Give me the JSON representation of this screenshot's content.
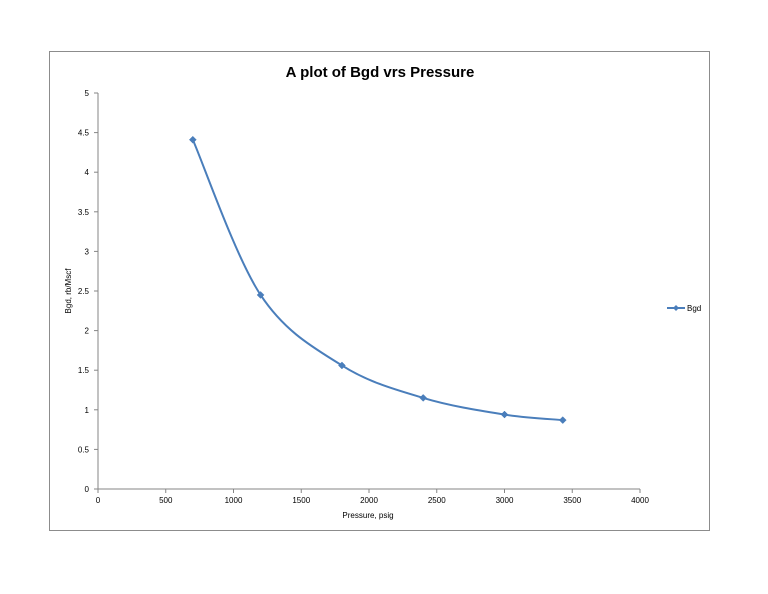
{
  "chart_data": {
    "type": "scatter",
    "title": "A plot of Bgd vrs Pressure",
    "xlabel": "Pressure, psig",
    "ylabel": "Bgd, rb/Mscf",
    "xlim": [
      0,
      4000
    ],
    "ylim": [
      0,
      5
    ],
    "xticks": [
      0,
      500,
      1000,
      1500,
      2000,
      2500,
      3000,
      3500,
      4000
    ],
    "yticks": [
      0,
      0.5,
      1,
      1.5,
      2,
      2.5,
      3,
      3.5,
      4,
      4.5,
      5
    ],
    "ytick_labels": [
      "0",
      "0.5",
      "1",
      "1.5",
      "2",
      "2.5",
      "3",
      "3.5",
      "4",
      "4.5",
      "5"
    ],
    "grid": false,
    "legend_position": "right",
    "line_style": "smooth line with diamond markers",
    "series": [
      {
        "name": "Bgd",
        "color": "#4a7ebb",
        "x": [
          700,
          1200,
          1800,
          2400,
          3000,
          3430
        ],
        "y": [
          4.41,
          2.45,
          1.56,
          1.15,
          0.94,
          0.87
        ]
      }
    ]
  }
}
